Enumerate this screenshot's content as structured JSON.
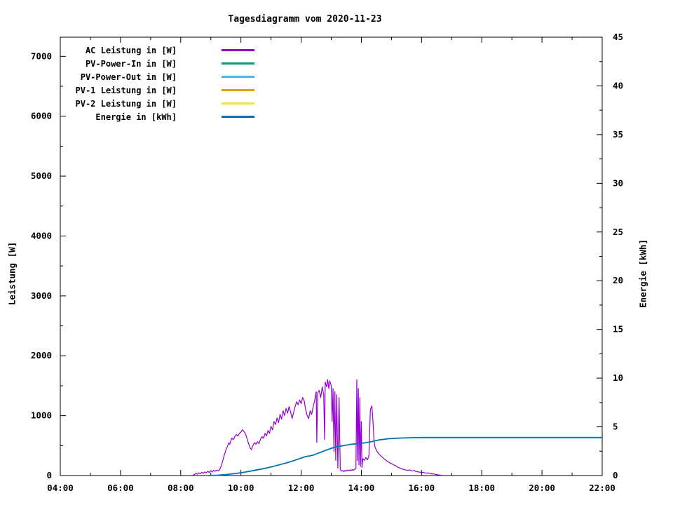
{
  "title": "Tagesdiagramm vom 2020-11-23",
  "chart_data": {
    "type": "line",
    "title": "Tagesdiagramm vom 2020-11-23",
    "xlabel": "",
    "ylabel": "Leistung [W]",
    "y2label": "Energie [kWh]",
    "grid": false,
    "legend_position": "top-left-inside",
    "x_axis": {
      "range_hours": [
        4,
        22
      ],
      "major_tick_hours": [
        4,
        6,
        8,
        10,
        12,
        14,
        16,
        18,
        20,
        22
      ],
      "tick_labels": [
        "04:00",
        "06:00",
        "08:00",
        "10:00",
        "12:00",
        "14:00",
        "16:00",
        "18:00",
        "20:00",
        "22:00"
      ],
      "minor_tick_hours": [
        5,
        7,
        9,
        11,
        13,
        15,
        17,
        19,
        21
      ]
    },
    "y_left": {
      "range": [
        0,
        7320
      ],
      "major_ticks": [
        0,
        1000,
        2000,
        3000,
        4000,
        5000,
        6000,
        7000
      ],
      "minor_ticks": [
        500,
        1500,
        2500,
        3500,
        4500,
        5500,
        6500
      ]
    },
    "y_right": {
      "range": [
        0,
        45
      ],
      "major_ticks": [
        0,
        5,
        10,
        15,
        20,
        25,
        30,
        35,
        40,
        45
      ],
      "minor_ticks": [
        2.5,
        7.5,
        12.5,
        17.5,
        22.5,
        27.5,
        32.5,
        37.5,
        42.5
      ]
    },
    "series": [
      {
        "name": "AC Leistung in [W]",
        "color": "#9400d3",
        "axis": "left",
        "points": [
          [
            8.4,
            5
          ],
          [
            8.45,
            15
          ],
          [
            8.5,
            35
          ],
          [
            8.55,
            22
          ],
          [
            8.6,
            45
          ],
          [
            8.65,
            30
          ],
          [
            8.7,
            55
          ],
          [
            8.75,
            38
          ],
          [
            8.8,
            62
          ],
          [
            8.85,
            45
          ],
          [
            8.9,
            72
          ],
          [
            8.95,
            52
          ],
          [
            9.0,
            82
          ],
          [
            9.05,
            60
          ],
          [
            9.1,
            88
          ],
          [
            9.15,
            70
          ],
          [
            9.2,
            92
          ],
          [
            9.25,
            78
          ],
          [
            9.3,
            105
          ],
          [
            9.35,
            165
          ],
          [
            9.4,
            255
          ],
          [
            9.45,
            345
          ],
          [
            9.5,
            425
          ],
          [
            9.55,
            485
          ],
          [
            9.6,
            545
          ],
          [
            9.63,
            520
          ],
          [
            9.67,
            590
          ],
          [
            9.7,
            625
          ],
          [
            9.75,
            600
          ],
          [
            9.8,
            655
          ],
          [
            9.85,
            685
          ],
          [
            9.9,
            660
          ],
          [
            9.95,
            705
          ],
          [
            10.0,
            725
          ],
          [
            10.05,
            765
          ],
          [
            10.1,
            735
          ],
          [
            10.15,
            700
          ],
          [
            10.2,
            620
          ],
          [
            10.25,
            540
          ],
          [
            10.3,
            470
          ],
          [
            10.35,
            432
          ],
          [
            10.4,
            505
          ],
          [
            10.45,
            548
          ],
          [
            10.5,
            522
          ],
          [
            10.55,
            565
          ],
          [
            10.6,
            532
          ],
          [
            10.65,
            605
          ],
          [
            10.7,
            652
          ],
          [
            10.75,
            622
          ],
          [
            10.8,
            705
          ],
          [
            10.85,
            662
          ],
          [
            10.9,
            752
          ],
          [
            10.95,
            705
          ],
          [
            11.0,
            822
          ],
          [
            11.05,
            762
          ],
          [
            11.1,
            902
          ],
          [
            11.15,
            852
          ],
          [
            11.2,
            962
          ],
          [
            11.25,
            882
          ],
          [
            11.3,
            1022
          ],
          [
            11.35,
            942
          ],
          [
            11.4,
            1082
          ],
          [
            11.45,
            1002
          ],
          [
            11.5,
            1122
          ],
          [
            11.55,
            1042
          ],
          [
            11.6,
            1152
          ],
          [
            11.65,
            1062
          ],
          [
            11.7,
            952
          ],
          [
            11.75,
            1052
          ],
          [
            11.8,
            1152
          ],
          [
            11.85,
            1232
          ],
          [
            11.9,
            1182
          ],
          [
            11.95,
            1262
          ],
          [
            12.0,
            1202
          ],
          [
            12.05,
            1302
          ],
          [
            12.1,
            1252
          ],
          [
            12.15,
            1102
          ],
          [
            12.2,
            1002
          ],
          [
            12.25,
            952
          ],
          [
            12.3,
            1082
          ],
          [
            12.35,
            1022
          ],
          [
            12.4,
            1152
          ],
          [
            12.45,
            1252
          ],
          [
            12.5,
            1402
          ],
          [
            12.52,
            552
          ],
          [
            12.55,
            1382
          ],
          [
            12.6,
            1422
          ],
          [
            12.65,
            1302
          ],
          [
            12.7,
            1482
          ],
          [
            12.75,
            1352
          ],
          [
            12.78,
            602
          ],
          [
            12.8,
            1562
          ],
          [
            12.85,
            1482
          ],
          [
            12.88,
            1602
          ],
          [
            12.92,
            1452
          ],
          [
            12.95,
            1582
          ],
          [
            13.0,
            1502
          ],
          [
            13.03,
            902
          ],
          [
            13.06,
            1452
          ],
          [
            13.09,
            402
          ],
          [
            13.12,
            1402
          ],
          [
            13.15,
            252
          ],
          [
            13.18,
            1352
          ],
          [
            13.22,
            122
          ],
          [
            13.26,
            1302
          ],
          [
            13.3,
            102
          ],
          [
            13.34,
            72
          ],
          [
            13.38,
            85
          ],
          [
            13.42,
            65
          ],
          [
            13.46,
            88
          ],
          [
            13.5,
            72
          ],
          [
            13.54,
            92
          ],
          [
            13.58,
            78
          ],
          [
            13.62,
            95
          ],
          [
            13.66,
            82
          ],
          [
            13.7,
            100
          ],
          [
            13.74,
            88
          ],
          [
            13.78,
            105
          ],
          [
            13.82,
            118
          ],
          [
            13.85,
            1600
          ],
          [
            13.87,
            252
          ],
          [
            13.9,
            1452
          ],
          [
            13.92,
            182
          ],
          [
            13.95,
            1302
          ],
          [
            13.97,
            152
          ],
          [
            14.0,
            902
          ],
          [
            14.02,
            132
          ],
          [
            14.05,
            282
          ],
          [
            14.1,
            252
          ],
          [
            14.15,
            302
          ],
          [
            14.2,
            262
          ],
          [
            14.25,
            322
          ],
          [
            14.3,
            1102
          ],
          [
            14.35,
            1162
          ],
          [
            14.38,
            952
          ],
          [
            14.42,
            602
          ],
          [
            14.45,
            482
          ],
          [
            14.5,
            422
          ],
          [
            14.55,
            382
          ],
          [
            14.6,
            352
          ],
          [
            14.65,
            330
          ],
          [
            14.7,
            302
          ],
          [
            14.75,
            282
          ],
          [
            14.8,
            262
          ],
          [
            14.85,
            242
          ],
          [
            14.9,
            225
          ],
          [
            14.95,
            210
          ],
          [
            15.0,
            200
          ],
          [
            15.05,
            186
          ],
          [
            15.1,
            172
          ],
          [
            15.15,
            160
          ],
          [
            15.2,
            142
          ],
          [
            15.25,
            132
          ],
          [
            15.3,
            122
          ],
          [
            15.35,
            112
          ],
          [
            15.4,
            102
          ],
          [
            15.45,
            96
          ],
          [
            15.5,
            90
          ],
          [
            15.55,
            86
          ],
          [
            15.6,
            95
          ],
          [
            15.65,
            80
          ],
          [
            15.7,
            76
          ],
          [
            15.75,
            86
          ],
          [
            15.8,
            70
          ],
          [
            15.85,
            66
          ],
          [
            15.9,
            60
          ],
          [
            15.95,
            56
          ],
          [
            16.0,
            50
          ],
          [
            16.05,
            56
          ],
          [
            16.1,
            46
          ],
          [
            16.15,
            40
          ],
          [
            16.2,
            46
          ],
          [
            16.25,
            36
          ],
          [
            16.3,
            30
          ],
          [
            16.35,
            26
          ],
          [
            16.4,
            28
          ],
          [
            16.45,
            20
          ],
          [
            16.5,
            16
          ],
          [
            16.55,
            12
          ],
          [
            16.6,
            8
          ],
          [
            16.65,
            4
          ],
          [
            16.7,
            2
          ]
        ]
      },
      {
        "name": "PV-Power-In in [W]",
        "color": "#009e73",
        "axis": "left",
        "points": []
      },
      {
        "name": "PV-Power-Out in [W]",
        "color": "#56b4e9",
        "axis": "left",
        "points": []
      },
      {
        "name": "PV-1 Leistung in [W]",
        "color": "#e69f00",
        "axis": "left",
        "points": []
      },
      {
        "name": "PV-2 Leistung in [W]",
        "color": "#f0e442",
        "axis": "left",
        "points": []
      },
      {
        "name": "Energie in [kWh]",
        "color": "#0072b2",
        "axis": "right",
        "points": [
          [
            8.9,
            0
          ],
          [
            9.2,
            0.03
          ],
          [
            9.5,
            0.1
          ],
          [
            9.8,
            0.2
          ],
          [
            10.1,
            0.33
          ],
          [
            10.4,
            0.5
          ],
          [
            10.7,
            0.68
          ],
          [
            11.0,
            0.88
          ],
          [
            11.3,
            1.12
          ],
          [
            11.6,
            1.38
          ],
          [
            11.9,
            1.68
          ],
          [
            12.1,
            1.9
          ],
          [
            12.4,
            2.1
          ],
          [
            12.7,
            2.45
          ],
          [
            13.0,
            2.8
          ],
          [
            13.2,
            2.97
          ],
          [
            13.4,
            3.06
          ],
          [
            13.6,
            3.18
          ],
          [
            13.9,
            3.28
          ],
          [
            14.1,
            3.35
          ],
          [
            14.4,
            3.52
          ],
          [
            14.6,
            3.66
          ],
          [
            14.9,
            3.78
          ],
          [
            15.1,
            3.82
          ],
          [
            15.4,
            3.86
          ],
          [
            15.7,
            3.89
          ],
          [
            16.0,
            3.9
          ],
          [
            22.0,
            3.9
          ]
        ]
      }
    ]
  }
}
